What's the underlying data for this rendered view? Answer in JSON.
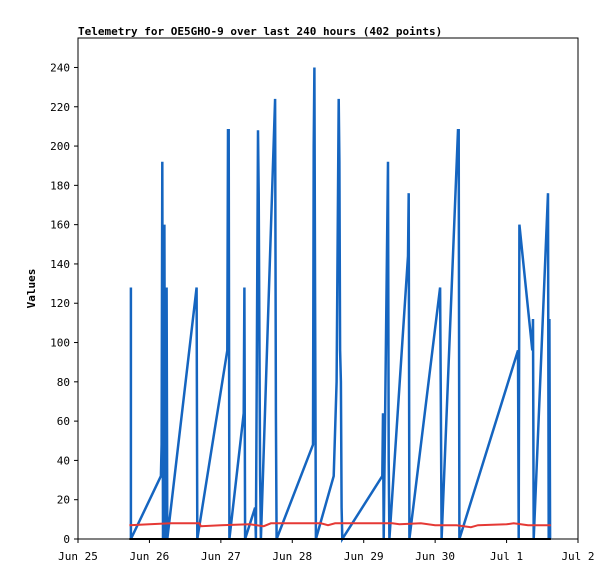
{
  "chart_data": {
    "type": "line",
    "title": "Telemetry for OE5GHO-9 over last 240 hours (402 points)",
    "xlabel": "",
    "ylabel": "Values",
    "x_ticks": [
      "Jun 25",
      "Jun 26",
      "Jun 27",
      "Jun 28",
      "Jun 29",
      "Jun 30",
      "Jul 1",
      "Jul 2"
    ],
    "x_range_days": [
      0,
      7
    ],
    "ylim": [
      0,
      255
    ],
    "y_ticks": [
      0,
      20,
      40,
      60,
      80,
      100,
      120,
      140,
      160,
      180,
      200,
      220,
      240
    ],
    "grid": false,
    "series": [
      {
        "color": "#1565c0",
        "points": [
          [
            0.74,
            128
          ],
          [
            0.74,
            0
          ],
          [
            1.16,
            32
          ],
          [
            1.17,
            48
          ],
          [
            1.18,
            192
          ],
          [
            1.19,
            0
          ],
          [
            1.21,
            160
          ],
          [
            1.22,
            0
          ],
          [
            1.24,
            128
          ],
          [
            1.25,
            0
          ],
          [
            1.66,
            128
          ],
          [
            1.67,
            0
          ],
          [
            2.09,
            96
          ],
          [
            2.1,
            208
          ],
          [
            2.11,
            208
          ],
          [
            2.12,
            0
          ],
          [
            2.32,
            64
          ],
          [
            2.33,
            128
          ],
          [
            2.34,
            0
          ],
          [
            2.48,
            16
          ],
          [
            2.49,
            0
          ],
          [
            2.52,
            208
          ],
          [
            2.53,
            176
          ],
          [
            2.54,
            104
          ],
          [
            2.55,
            32
          ],
          [
            2.56,
            0
          ],
          [
            2.76,
            224
          ],
          [
            2.77,
            64
          ],
          [
            2.78,
            0
          ],
          [
            3.29,
            48
          ],
          [
            3.3,
            200
          ],
          [
            3.31,
            240
          ],
          [
            3.32,
            120
          ],
          [
            3.33,
            0
          ],
          [
            3.58,
            32
          ],
          [
            3.62,
            80
          ],
          [
            3.64,
            176
          ],
          [
            3.65,
            224
          ],
          [
            3.66,
            192
          ],
          [
            3.67,
            96
          ],
          [
            3.68,
            80
          ],
          [
            3.69,
            16
          ],
          [
            3.7,
            0
          ],
          [
            4.26,
            32
          ],
          [
            4.27,
            64
          ],
          [
            4.28,
            0
          ],
          [
            4.34,
            192
          ],
          [
            4.35,
            40
          ],
          [
            4.36,
            0
          ],
          [
            4.62,
            144
          ],
          [
            4.63,
            176
          ],
          [
            4.64,
            0
          ],
          [
            5.07,
            128
          ],
          [
            5.08,
            64
          ],
          [
            5.09,
            0
          ],
          [
            5.32,
            208
          ],
          [
            5.33,
            208
          ],
          [
            5.34,
            0
          ],
          [
            6.16,
            96
          ],
          [
            6.17,
            0
          ],
          [
            6.18,
            160
          ],
          [
            6.36,
            96
          ],
          [
            6.37,
            112
          ],
          [
            6.38,
            0
          ],
          [
            6.58,
            176
          ],
          [
            6.59,
            0
          ],
          [
            6.6,
            112
          ],
          [
            6.61,
            0
          ]
        ]
      },
      {
        "color": "#e53935",
        "points": [
          [
            0.72,
            7
          ],
          [
            1.0,
            7.5
          ],
          [
            1.3,
            8
          ],
          [
            1.7,
            8
          ],
          [
            1.72,
            6.5
          ],
          [
            2.0,
            7
          ],
          [
            2.4,
            7.5
          ],
          [
            2.6,
            6.5
          ],
          [
            2.7,
            8
          ],
          [
            2.9,
            8
          ],
          [
            3.2,
            8
          ],
          [
            3.4,
            8
          ],
          [
            3.5,
            7
          ],
          [
            3.6,
            8
          ],
          [
            4.0,
            8
          ],
          [
            4.4,
            8
          ],
          [
            4.5,
            7.5
          ],
          [
            4.8,
            8
          ],
          [
            5.0,
            7
          ],
          [
            5.3,
            7
          ],
          [
            5.5,
            6
          ],
          [
            5.6,
            7
          ],
          [
            6.0,
            7.5
          ],
          [
            6.1,
            8
          ],
          [
            6.3,
            7
          ],
          [
            6.62,
            7
          ]
        ]
      },
      {
        "color": "#000000",
        "points": [
          [
            0.72,
            0
          ],
          [
            6.62,
            0
          ]
        ]
      }
    ]
  }
}
